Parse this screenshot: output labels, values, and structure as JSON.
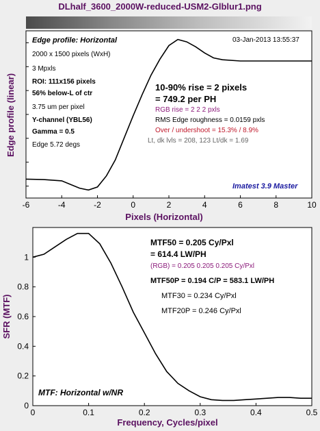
{
  "window": {
    "title": "DLhalf_3600_2000W-reduced-USM2-Glblur1.png"
  },
  "edge_panel": {
    "heading": "Edge profile: Horizontal",
    "date": "03-Jan-2013 13:55:37",
    "info": [
      "2000 x 1500 pixels (WxH)",
      "3 Mpxls",
      "ROI: 111x156 pixels",
      "56% below-L of ctr",
      "3.75 um per pixel",
      "Y-channel  (YBL56)",
      "Gamma = 0.5",
      "Edge 5.72 degs"
    ],
    "rise1": "10-90% rise = 2 pixels",
    "rise2": "= 749.2 per PH",
    "rgb_rise": "RGB rise = 2  2  2 pxls",
    "roughness": "RMS Edge roughness = 0.0159 pxls",
    "overshoot": "Over / undershoot = 15.3% / 8.9%",
    "levels": "Lt, dk lvls = 208, 123   Lt/dk = 1.69",
    "brand": "Imatest 3.9 Master"
  },
  "mtf_panel": {
    "mtf50_1": "MTF50 = 0.205 Cy/Pxl",
    "mtf50_2": "= 614.4 LW/PH",
    "rgb": "(RGB) = 0.205  0.205  0.205 Cy/Pxl",
    "mtf50p": "MTF50P = 0.194 C/P = 583.1 LW/PH",
    "mtf30": "MTF30 = 0.234 Cy/Pxl",
    "mtf20p": "MTF20P = 0.246 Cy/Pxl",
    "caption": "MTF: Horizontal w/NR"
  },
  "colors": {
    "title": "#5a1060",
    "rgb_text": "#8b1a7a",
    "red_text": "#c0182a",
    "brand": "#1a1aa0"
  },
  "chart_data": [
    {
      "type": "line",
      "title": "Edge profile: Horizontal",
      "xlabel": "Pixels (Horizontal)",
      "ylabel": "Edge profile (linear)",
      "xlim": [
        -6,
        10
      ],
      "xticks": [
        "-6",
        "-4",
        "-2",
        "0",
        "2",
        "4",
        "6",
        "8",
        "10"
      ],
      "grid": false,
      "series": [
        {
          "x": [
            -6,
            -5,
            -4,
            -3.5,
            -3,
            -2.5,
            -2,
            -1.5,
            -1,
            -0.5,
            0,
            0.5,
            1,
            1.5,
            2,
            2.5,
            3,
            3.5,
            4,
            4.5,
            5,
            6,
            7,
            8,
            10
          ],
          "y": [
            0.014,
            0.01,
            0.0,
            -0.03,
            -0.06,
            -0.075,
            -0.05,
            0.04,
            0.17,
            0.35,
            0.53,
            0.7,
            0.86,
            0.99,
            1.1,
            1.15,
            1.13,
            1.09,
            1.04,
            1.0,
            0.985,
            0.975,
            0.975,
            0.975,
            0.975
          ]
        }
      ]
    },
    {
      "type": "line",
      "caption": "MTF: Horizontal w/NR",
      "xlabel": "Frequency, Cycles/pixel",
      "ylabel": "SFR (MTF)",
      "xlim": [
        0,
        0.5
      ],
      "ylim": [
        0,
        1.2
      ],
      "xticks": [
        "0",
        "0.1",
        "0.2",
        "0.3",
        "0.4",
        "0.5"
      ],
      "yticks": [
        "0",
        "0.2",
        "0.4",
        "0.6",
        "0.8",
        "1"
      ],
      "grid": false,
      "series": [
        {
          "x": [
            0,
            0.02,
            0.04,
            0.06,
            0.08,
            0.1,
            0.12,
            0.14,
            0.16,
            0.18,
            0.2,
            0.22,
            0.24,
            0.26,
            0.28,
            0.3,
            0.32,
            0.34,
            0.36,
            0.38,
            0.4,
            0.42,
            0.44,
            0.46,
            0.48,
            0.5
          ],
          "y": [
            1.0,
            1.02,
            1.07,
            1.12,
            1.16,
            1.16,
            1.09,
            0.96,
            0.8,
            0.63,
            0.49,
            0.35,
            0.23,
            0.15,
            0.1,
            0.06,
            0.04,
            0.035,
            0.035,
            0.04,
            0.045,
            0.05,
            0.055,
            0.055,
            0.05,
            0.05
          ]
        }
      ]
    }
  ]
}
